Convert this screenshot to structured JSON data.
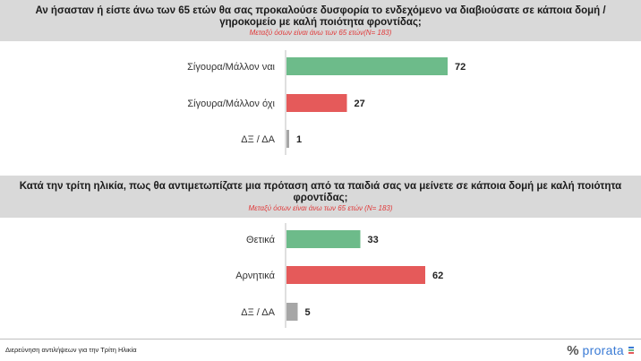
{
  "colors": {
    "positive": "#6dbb8a",
    "negative": "#e55a5a",
    "neutral": "#a6a6a6",
    "header_bg": "#d9d9d9",
    "subtitle": "#e03a3a",
    "brand": "#3a7bd5"
  },
  "chart_data": [
    {
      "type": "bar",
      "orientation": "horizontal",
      "title": "Αν ήσασταν ή είστε άνω των 65 ετών θα σας προκαλούσε δυσφορία το ενδεχόμενο να διαβιούσατε σε κάποια δομή / γηροκομείο με καλή ποιότητα φροντίδας;",
      "subtitle": "Μεταξύ όσων είναι άνω των 65 ετών(N= 183)",
      "categories": [
        "Σίγουρα/Μάλλον ναι",
        "Σίγουρα/Μάλλον όχι",
        "ΔΞ / ΔΑ"
      ],
      "values": [
        72,
        27,
        1
      ],
      "bar_colors": [
        "#6dbb8a",
        "#e55a5a",
        "#a6a6a6"
      ],
      "xlim": [
        0,
        100
      ],
      "grid": false,
      "legend": "none"
    },
    {
      "type": "bar",
      "orientation": "horizontal",
      "title": "Κατά την τρίτη ηλικία, πως θα αντιμετωπίζατε μια πρόταση από τα παιδιά σας να μείνετε σε κάποια δομή με καλή ποιότητα φροντίδας;",
      "subtitle": "Μεταξύ όσων είναι άνω των 65 ετών (N= 183)",
      "categories": [
        "Θετικά",
        "Αρνητικά",
        "ΔΞ / ΔΑ"
      ],
      "values": [
        33,
        62,
        5
      ],
      "bar_colors": [
        "#6dbb8a",
        "#e55a5a",
        "#a6a6a6"
      ],
      "xlim": [
        0,
        100
      ],
      "grid": false,
      "legend": "none"
    }
  ],
  "footer": {
    "survey_label": "Διερεύνηση αντιλήψεων για την Τρίτη Ηλικία",
    "logo_mark": "%",
    "logo_text": "prorata"
  }
}
